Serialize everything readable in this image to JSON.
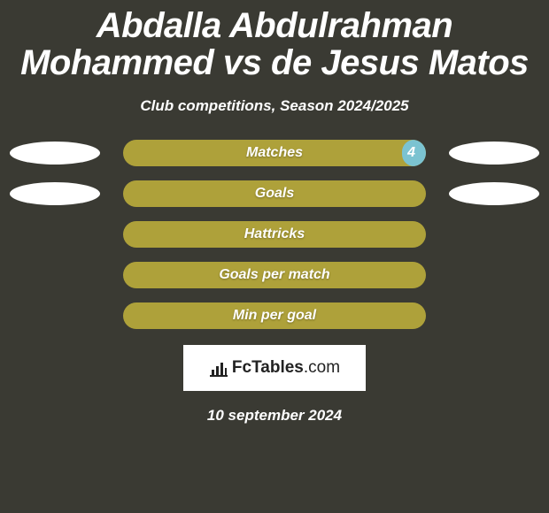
{
  "background_color": "#3a3a33",
  "title": {
    "text": "Abdalla Abdulrahman Mohammed vs de Jesus Matos",
    "color": "#ffffff",
    "fontsize": 40
  },
  "subtitle": {
    "text": "Club competitions, Season 2024/2025",
    "color": "#ffffff",
    "fontsize": 17
  },
  "ellipse_color": "#ffffff",
  "bar_bg_color": "#aea13a",
  "bar_fill_color": "#7bc3d1",
  "bar_label_color": "#ffffff",
  "bar_label_fontsize": 16,
  "rows": [
    {
      "label": "Matches",
      "left_value": null,
      "right_value": "4",
      "left_fill_pct": 0,
      "right_fill_pct": 8,
      "show_ellipse_left": true,
      "show_ellipse_right": true
    },
    {
      "label": "Goals",
      "left_value": null,
      "right_value": null,
      "left_fill_pct": 0,
      "right_fill_pct": 0,
      "show_ellipse_left": true,
      "show_ellipse_right": true
    },
    {
      "label": "Hattricks",
      "left_value": null,
      "right_value": null,
      "left_fill_pct": 0,
      "right_fill_pct": 0,
      "show_ellipse_left": false,
      "show_ellipse_right": false
    },
    {
      "label": "Goals per match",
      "left_value": null,
      "right_value": null,
      "left_fill_pct": 0,
      "right_fill_pct": 0,
      "show_ellipse_left": false,
      "show_ellipse_right": false
    },
    {
      "label": "Min per goal",
      "left_value": null,
      "right_value": null,
      "left_fill_pct": 0,
      "right_fill_pct": 0,
      "show_ellipse_left": false,
      "show_ellipse_right": false
    }
  ],
  "logo": {
    "brand_bold": "FcTables",
    "brand_thin": ".com",
    "box_bg": "#ffffff",
    "text_color": "#222222",
    "icon_color": "#222222"
  },
  "date": {
    "text": "10 september 2024",
    "color": "#ffffff",
    "fontsize": 17
  }
}
